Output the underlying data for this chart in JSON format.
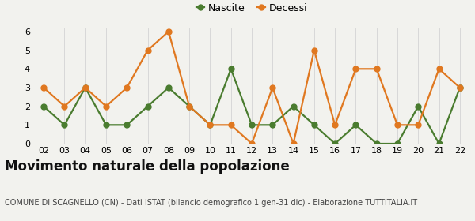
{
  "years": [
    "02",
    "03",
    "04",
    "05",
    "06",
    "07",
    "08",
    "09",
    "10",
    "11",
    "12",
    "13",
    "14",
    "15",
    "16",
    "17",
    "18",
    "19",
    "20",
    "21",
    "22"
  ],
  "nascite": [
    2,
    1,
    3,
    1,
    1,
    2,
    3,
    2,
    1,
    4,
    1,
    1,
    2,
    1,
    0,
    1,
    0,
    0,
    2,
    0,
    3
  ],
  "decessi": [
    3,
    2,
    3,
    2,
    3,
    5,
    6,
    2,
    1,
    1,
    0,
    3,
    0,
    5,
    1,
    4,
    4,
    1,
    1,
    4,
    3
  ],
  "nascite_color": "#4a7c2f",
  "decessi_color": "#e07820",
  "title": "Movimento naturale della popolazione",
  "subtitle": "COMUNE DI SCAGNELLO (CN) - Dati ISTAT (bilancio demografico 1 gen-31 dic) - Elaborazione TUTTITALIA.IT",
  "legend_nascite": "Nascite",
  "legend_decessi": "Decessi",
  "ylim": [
    0,
    6
  ],
  "yticks": [
    0,
    1,
    2,
    3,
    4,
    5,
    6
  ],
  "background_color": "#f2f2ee",
  "grid_color": "#d8d8d8",
  "title_fontsize": 12,
  "subtitle_fontsize": 7,
  "tick_fontsize": 8,
  "legend_fontsize": 9,
  "marker_size": 5,
  "line_width": 1.6
}
